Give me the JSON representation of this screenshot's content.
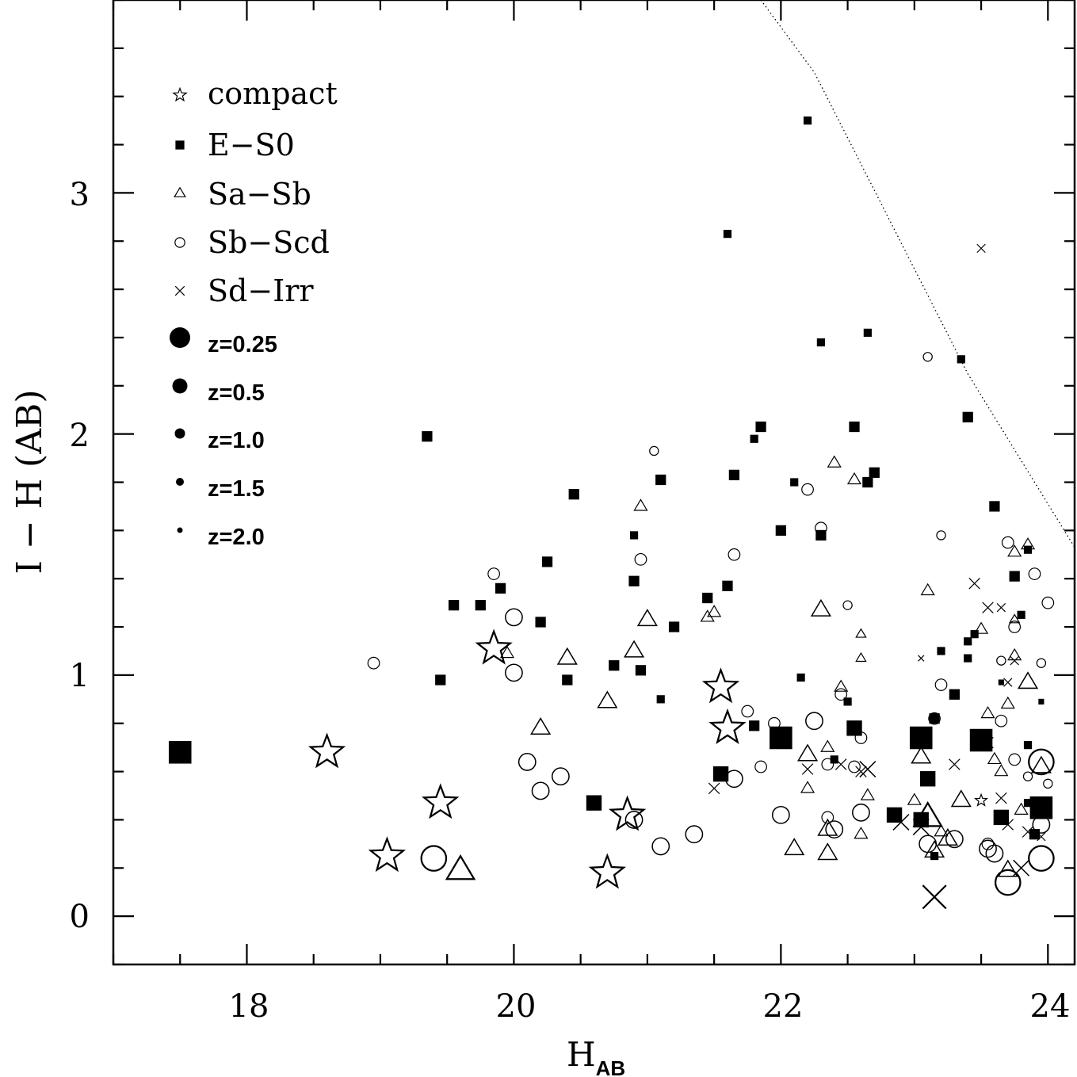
{
  "chart_data": {
    "type": "scatter",
    "title": "",
    "xlabel_main": "H",
    "xlabel_sub": "AB",
    "ylabel": "I − H (AB)",
    "xlim": [
      17.0,
      24.2
    ],
    "ylim": [
      -0.2,
      3.8
    ],
    "xticks": [
      {
        "value": 18,
        "label": "18"
      },
      {
        "value": 20,
        "label": "20"
      },
      {
        "value": 22,
        "label": "22"
      },
      {
        "value": 24,
        "label": "24"
      }
    ],
    "yticks": [
      {
        "value": 0,
        "label": "0"
      },
      {
        "value": 1,
        "label": "1"
      },
      {
        "value": 2,
        "label": "2"
      },
      {
        "value": 3,
        "label": "3"
      }
    ],
    "grid": false,
    "legend_position": "top-left",
    "legend_types": [
      {
        "type": "compact",
        "label": "compact"
      },
      {
        "type": "E-S0",
        "label": "E−S0"
      },
      {
        "type": "Sa-Sb",
        "label": "Sa−Sb"
      },
      {
        "type": "Sb-Scd",
        "label": "Sb−Scd"
      },
      {
        "type": "Sd-Irr",
        "label": "Sd−Irr"
      }
    ],
    "legend_redshifts": [
      {
        "z": 0.25,
        "label": "z=0.25"
      },
      {
        "z": 0.5,
        "label": "z=0.5"
      },
      {
        "z": 1.0,
        "label": "z=1.0"
      },
      {
        "z": 1.5,
        "label": "z=1.5"
      },
      {
        "z": 2.0,
        "label": "z=2.0"
      }
    ],
    "limit_line": {
      "style": "dotted",
      "points": [
        [
          21.85,
          3.8
        ],
        [
          22.25,
          3.5
        ],
        [
          23.4,
          2.25
        ],
        [
          24.2,
          1.53
        ]
      ]
    },
    "series": [
      {
        "name": "compact",
        "points": [
          [
            18.6,
            0.68,
            0.25
          ],
          [
            19.05,
            0.25,
            0.25
          ],
          [
            19.45,
            0.47,
            0.25
          ],
          [
            19.85,
            1.11,
            0.25
          ],
          [
            20.7,
            0.18,
            0.25
          ],
          [
            20.85,
            0.42,
            0.25
          ],
          [
            21.55,
            0.95,
            0.25
          ],
          [
            21.6,
            0.78,
            0.25
          ],
          [
            23.5,
            0.48,
            1.5
          ]
        ]
      },
      {
        "name": "E-S0",
        "points": [
          [
            17.5,
            0.68,
            0.25
          ],
          [
            22.0,
            0.74,
            0.25
          ],
          [
            23.05,
            0.74,
            0.25
          ],
          [
            23.5,
            0.73,
            0.25
          ],
          [
            23.95,
            0.45,
            0.25
          ],
          [
            20.6,
            0.47,
            0.5
          ],
          [
            22.55,
            0.78,
            0.5
          ],
          [
            22.85,
            0.42,
            0.5
          ],
          [
            23.1,
            0.57,
            0.5
          ],
          [
            21.55,
            0.59,
            0.5
          ],
          [
            23.65,
            0.41,
            0.5
          ],
          [
            23.05,
            0.4,
            0.5
          ],
          [
            19.35,
            1.99,
            1.0
          ],
          [
            19.45,
            0.98,
            1.0
          ],
          [
            19.55,
            1.29,
            1.0
          ],
          [
            19.75,
            1.29,
            1.0
          ],
          [
            19.9,
            1.36,
            1.0
          ],
          [
            20.2,
            1.22,
            1.0
          ],
          [
            20.25,
            1.47,
            1.0
          ],
          [
            20.4,
            0.98,
            1.0
          ],
          [
            20.45,
            1.75,
            1.0
          ],
          [
            20.75,
            1.04,
            1.0
          ],
          [
            20.9,
            1.39,
            1.0
          ],
          [
            20.95,
            1.02,
            1.0
          ],
          [
            21.1,
            1.81,
            1.0
          ],
          [
            21.2,
            1.2,
            1.0
          ],
          [
            21.45,
            1.32,
            1.0
          ],
          [
            21.6,
            1.37,
            1.0
          ],
          [
            21.65,
            1.83,
            1.0
          ],
          [
            21.85,
            2.03,
            1.0
          ],
          [
            22.0,
            1.6,
            1.0
          ],
          [
            22.3,
            1.58,
            1.0
          ],
          [
            22.55,
            2.03,
            1.0
          ],
          [
            22.7,
            1.84,
            1.0
          ],
          [
            22.65,
            1.8,
            1.0
          ],
          [
            23.15,
            0.82,
            1.0
          ],
          [
            23.3,
            0.92,
            1.0
          ],
          [
            23.4,
            2.07,
            1.0
          ],
          [
            23.6,
            1.7,
            1.0
          ],
          [
            23.75,
            1.41,
            1.0
          ],
          [
            23.9,
            0.34,
            1.0
          ],
          [
            21.8,
            0.79,
            1.0
          ],
          [
            20.9,
            1.58,
            1.5
          ],
          [
            21.1,
            0.9,
            1.5
          ],
          [
            21.6,
            2.83,
            1.5
          ],
          [
            21.8,
            1.98,
            1.5
          ],
          [
            22.1,
            1.8,
            1.5
          ],
          [
            22.15,
            0.99,
            1.5
          ],
          [
            22.3,
            2.38,
            1.5
          ],
          [
            22.2,
            3.3,
            1.5
          ],
          [
            22.65,
            2.42,
            1.5
          ],
          [
            23.35,
            2.31,
            1.5
          ],
          [
            23.2,
            1.1,
            1.5
          ],
          [
            23.4,
            1.14,
            1.5
          ],
          [
            23.45,
            1.17,
            1.5
          ],
          [
            23.4,
            1.07,
            1.5
          ],
          [
            23.15,
            0.25,
            1.5
          ],
          [
            23.85,
            0.71,
            1.5
          ],
          [
            23.8,
            1.25,
            1.5
          ],
          [
            23.85,
            1.52,
            1.5
          ],
          [
            22.5,
            0.89,
            1.5
          ],
          [
            22.4,
            0.65,
            1.5
          ],
          [
            23.85,
            0.47,
            1.5
          ],
          [
            23.65,
            0.97,
            2.0
          ],
          [
            23.95,
            0.89,
            2.0
          ]
        ]
      },
      {
        "name": "Sa-Sb",
        "points": [
          [
            19.6,
            0.19,
            0.25
          ],
          [
            23.1,
            0.41,
            0.25
          ],
          [
            20.2,
            0.78,
            0.5
          ],
          [
            20.4,
            1.07,
            0.5
          ],
          [
            20.7,
            0.89,
            0.5
          ],
          [
            21.0,
            1.23,
            0.5
          ],
          [
            20.9,
            1.1,
            0.5
          ],
          [
            22.1,
            0.28,
            0.5
          ],
          [
            22.35,
            0.26,
            0.5
          ],
          [
            22.3,
            1.27,
            0.5
          ],
          [
            22.2,
            0.67,
            0.5
          ],
          [
            22.35,
            0.36,
            0.5
          ],
          [
            23.15,
            0.27,
            0.5
          ],
          [
            23.25,
            0.32,
            0.5
          ],
          [
            23.35,
            0.48,
            0.5
          ],
          [
            23.05,
            0.66,
            0.5
          ],
          [
            23.7,
            0.19,
            0.5
          ],
          [
            23.95,
            0.62,
            0.5
          ],
          [
            23.85,
            0.97,
            0.5
          ],
          [
            19.95,
            1.09,
            1.0
          ],
          [
            21.5,
            1.26,
            1.0
          ],
          [
            21.45,
            1.24,
            1.0
          ],
          [
            20.95,
            1.7,
            1.0
          ],
          [
            22.4,
            1.88,
            1.0
          ],
          [
            22.55,
            1.81,
            1.0
          ],
          [
            22.35,
            0.7,
            1.0
          ],
          [
            22.45,
            0.95,
            1.0
          ],
          [
            22.65,
            0.5,
            1.0
          ],
          [
            22.6,
            0.34,
            1.0
          ],
          [
            23.1,
            1.35,
            1.0
          ],
          [
            23.0,
            0.48,
            1.0
          ],
          [
            23.5,
            1.19,
            1.0
          ],
          [
            23.55,
            0.84,
            1.0
          ],
          [
            23.7,
            0.88,
            1.0
          ],
          [
            23.75,
            1.08,
            1.0
          ],
          [
            23.75,
            1.51,
            1.0
          ],
          [
            23.85,
            1.54,
            1.0
          ],
          [
            23.6,
            0.65,
            1.0
          ],
          [
            23.8,
            0.44,
            1.0
          ],
          [
            22.2,
            0.53,
            1.0
          ],
          [
            23.65,
            0.6,
            1.0
          ],
          [
            23.2,
            0.35,
            1.0
          ],
          [
            22.6,
            1.07,
            1.5
          ],
          [
            22.6,
            1.17,
            1.5
          ],
          [
            23.75,
            1.23,
            1.5
          ]
        ]
      },
      {
        "name": "Sb-Scd",
        "points": [
          [
            19.4,
            0.24,
            0.25
          ],
          [
            23.7,
            0.14,
            0.25
          ],
          [
            23.95,
            0.24,
            0.25
          ],
          [
            23.95,
            0.64,
            0.25
          ],
          [
            20.1,
            0.64,
            0.5
          ],
          [
            20.2,
            0.52,
            0.5
          ],
          [
            20.35,
            0.58,
            0.5
          ],
          [
            20.0,
            1.01,
            0.5
          ],
          [
            20.0,
            1.24,
            0.5
          ],
          [
            20.9,
            0.4,
            0.5
          ],
          [
            21.1,
            0.29,
            0.5
          ],
          [
            21.35,
            0.34,
            0.5
          ],
          [
            21.65,
            0.57,
            0.5
          ],
          [
            22.0,
            0.42,
            0.5
          ],
          [
            22.25,
            0.81,
            0.5
          ],
          [
            22.4,
            0.36,
            0.5
          ],
          [
            22.6,
            0.43,
            0.5
          ],
          [
            23.1,
            0.3,
            0.5
          ],
          [
            23.3,
            0.32,
            0.5
          ],
          [
            23.55,
            0.28,
            0.5
          ],
          [
            23.6,
            0.26,
            0.5
          ],
          [
            23.95,
            0.38,
            0.5
          ],
          [
            18.95,
            1.05,
            1.0
          ],
          [
            19.85,
            1.42,
            1.0
          ],
          [
            20.95,
            1.48,
            1.0
          ],
          [
            21.65,
            1.5,
            1.0
          ],
          [
            21.75,
            0.85,
            1.0
          ],
          [
            21.95,
            0.8,
            1.0
          ],
          [
            21.85,
            0.62,
            1.0
          ],
          [
            22.2,
            1.77,
            1.0
          ],
          [
            22.3,
            1.61,
            1.0
          ],
          [
            22.35,
            0.63,
            1.0
          ],
          [
            22.45,
            0.92,
            1.0
          ],
          [
            22.55,
            0.62,
            1.0
          ],
          [
            22.6,
            0.74,
            1.0
          ],
          [
            22.35,
            0.41,
            1.0
          ],
          [
            23.15,
            0.82,
            1.0
          ],
          [
            23.2,
            0.96,
            1.0
          ],
          [
            23.7,
            1.55,
            1.0
          ],
          [
            23.75,
            1.2,
            1.0
          ],
          [
            23.9,
            1.42,
            1.0
          ],
          [
            24.0,
            1.3,
            1.0
          ],
          [
            23.55,
            0.3,
            1.0
          ],
          [
            23.65,
            0.81,
            1.0
          ],
          [
            23.75,
            0.65,
            1.0
          ],
          [
            21.05,
            1.93,
            1.5
          ],
          [
            23.1,
            2.32,
            1.5
          ],
          [
            23.2,
            1.58,
            1.5
          ],
          [
            22.5,
            1.29,
            1.5
          ],
          [
            23.65,
            1.06,
            1.5
          ],
          [
            23.95,
            1.05,
            1.5
          ],
          [
            23.85,
            0.58,
            1.5
          ],
          [
            24.0,
            0.55,
            1.5
          ]
        ]
      },
      {
        "name": "Sd-Irr",
        "points": [
          [
            23.15,
            0.08,
            0.25
          ],
          [
            23.8,
            0.2,
            0.5
          ],
          [
            22.65,
            0.61,
            0.5
          ],
          [
            22.9,
            0.39,
            0.5
          ],
          [
            23.05,
            0.37,
            0.5
          ],
          [
            21.5,
            0.53,
            1.0
          ],
          [
            22.2,
            0.61,
            1.0
          ],
          [
            22.45,
            0.63,
            1.0
          ],
          [
            22.6,
            0.6,
            1.0
          ],
          [
            23.45,
            1.38,
            1.0
          ],
          [
            23.55,
            1.28,
            1.0
          ],
          [
            23.85,
            0.35,
            1.0
          ],
          [
            23.7,
            0.38,
            1.0
          ],
          [
            23.3,
            0.63,
            1.0
          ],
          [
            23.55,
            0.72,
            1.0
          ],
          [
            23.65,
            0.49,
            1.0
          ],
          [
            23.5,
            2.77,
            1.5
          ],
          [
            23.65,
            1.28,
            1.5
          ],
          [
            23.7,
            0.97,
            1.5
          ],
          [
            23.75,
            1.06,
            1.5
          ],
          [
            23.95,
            0.33,
            1.5
          ],
          [
            23.05,
            1.07,
            2.0
          ]
        ]
      }
    ]
  }
}
